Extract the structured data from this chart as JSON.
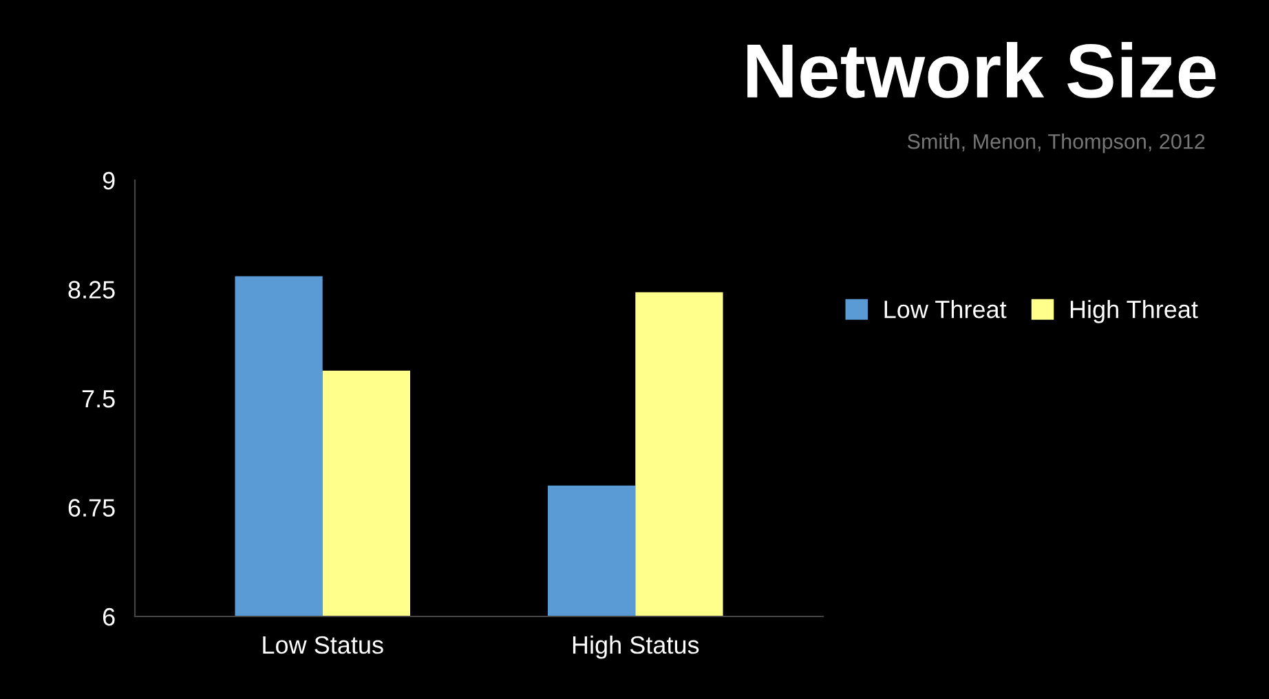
{
  "chart_data": {
    "type": "bar",
    "title": "Network Size",
    "annotations": [
      "Smith, Menon, Thompson, 2012"
    ],
    "categories": [
      "Low Status",
      "High Status"
    ],
    "series": [
      {
        "name": "Low Threat",
        "color": "#5b9bd5",
        "values": [
          8.34,
          6.9
        ]
      },
      {
        "name": "High Threat",
        "color": "#ffff8c",
        "values": [
          7.69,
          8.23
        ]
      }
    ],
    "ylim": [
      6,
      9
    ],
    "yticks": [
      6,
      6.75,
      7.5,
      8.25,
      9
    ],
    "grid": false,
    "legend": "right"
  }
}
